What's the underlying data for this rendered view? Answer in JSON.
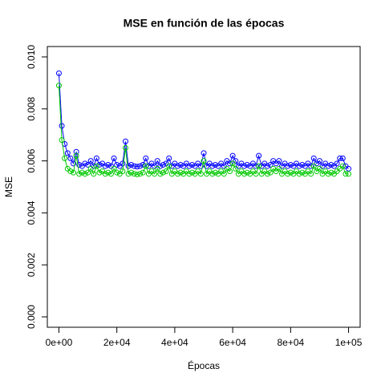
{
  "chart_data": {
    "type": "line",
    "title": "MSE en función de las épocas",
    "x_label": "Épocas",
    "y_label": "MSE",
    "x": [
      0,
      1000,
      2000,
      3000,
      4000,
      5000,
      6000,
      7000,
      8000,
      9000,
      10000,
      11000,
      12000,
      13000,
      14000,
      15000,
      16000,
      17000,
      18000,
      19000,
      20000,
      21000,
      22000,
      23000,
      24000,
      25000,
      26000,
      27000,
      28000,
      29000,
      30000,
      31000,
      32000,
      33000,
      34000,
      35000,
      36000,
      37000,
      38000,
      39000,
      40000,
      41000,
      42000,
      43000,
      44000,
      45000,
      46000,
      47000,
      48000,
      49000,
      50000,
      51000,
      52000,
      53000,
      54000,
      55000,
      56000,
      57000,
      58000,
      59000,
      60000,
      61000,
      62000,
      63000,
      64000,
      65000,
      66000,
      67000,
      68000,
      69000,
      70000,
      71000,
      72000,
      73000,
      74000,
      75000,
      76000,
      77000,
      78000,
      79000,
      80000,
      81000,
      82000,
      83000,
      84000,
      85000,
      86000,
      87000,
      88000,
      89000,
      90000,
      91000,
      92000,
      93000,
      94000,
      95000,
      96000,
      97000,
      98000,
      99000,
      100000
    ],
    "series": [
      {
        "color": "#0000ff",
        "values": [
          0.00937,
          0.00735,
          0.00665,
          0.0063,
          0.0061,
          0.0059,
          0.00635,
          0.00585,
          0.0058,
          0.0059,
          0.00585,
          0.006,
          0.0058,
          0.0061,
          0.00585,
          0.0059,
          0.0058,
          0.00585,
          0.0058,
          0.0061,
          0.00585,
          0.0058,
          0.0059,
          0.00675,
          0.0058,
          0.00585,
          0.0058,
          0.00578,
          0.0058,
          0.00585,
          0.0061,
          0.0058,
          0.0059,
          0.0058,
          0.006,
          0.0058,
          0.00585,
          0.0059,
          0.0061,
          0.0058,
          0.0059,
          0.0058,
          0.00585,
          0.0058,
          0.0059,
          0.0058,
          0.00585,
          0.0058,
          0.0059,
          0.0058,
          0.0063,
          0.0058,
          0.0059,
          0.0058,
          0.00585,
          0.0058,
          0.0059,
          0.0058,
          0.006,
          0.0059,
          0.0062,
          0.006,
          0.0058,
          0.0059,
          0.0058,
          0.00585,
          0.0058,
          0.0059,
          0.0058,
          0.0062,
          0.0058,
          0.0059,
          0.0058,
          0.00585,
          0.006,
          0.0059,
          0.006,
          0.0058,
          0.0059,
          0.0058,
          0.00585,
          0.0058,
          0.0059,
          0.0058,
          0.00585,
          0.0058,
          0.0059,
          0.0058,
          0.0061,
          0.0059,
          0.006,
          0.0058,
          0.0059,
          0.0058,
          0.00585,
          0.0058,
          0.0059,
          0.0061,
          0.0061,
          0.0058,
          0.0057
        ]
      },
      {
        "color": "#00c800",
        "values": [
          0.0089,
          0.0068,
          0.0061,
          0.0057,
          0.0056,
          0.00555,
          0.0062,
          0.0055,
          0.00555,
          0.0055,
          0.00555,
          0.0057,
          0.0055,
          0.0058,
          0.00555,
          0.0056,
          0.0055,
          0.00555,
          0.0055,
          0.0057,
          0.00555,
          0.0055,
          0.0056,
          0.0065,
          0.0055,
          0.00555,
          0.0055,
          0.00548,
          0.0055,
          0.00555,
          0.0058,
          0.0055,
          0.0056,
          0.0055,
          0.0057,
          0.0055,
          0.00555,
          0.0056,
          0.0058,
          0.0055,
          0.0056,
          0.0055,
          0.00555,
          0.0055,
          0.0056,
          0.0055,
          0.00555,
          0.0055,
          0.0056,
          0.0055,
          0.006,
          0.0055,
          0.0056,
          0.0055,
          0.00555,
          0.0055,
          0.0056,
          0.0055,
          0.0057,
          0.0056,
          0.0059,
          0.0057,
          0.0055,
          0.0056,
          0.0055,
          0.00555,
          0.0055,
          0.0056,
          0.0055,
          0.0058,
          0.0055,
          0.0056,
          0.0055,
          0.00555,
          0.0057,
          0.0056,
          0.0057,
          0.0055,
          0.0056,
          0.0055,
          0.00555,
          0.0055,
          0.0056,
          0.0055,
          0.00555,
          0.0055,
          0.0056,
          0.0055,
          0.0058,
          0.0056,
          0.0057,
          0.0055,
          0.0056,
          0.0055,
          0.00555,
          0.0055,
          0.0056,
          0.0057,
          0.0058,
          0.0055,
          0.0055
        ]
      }
    ],
    "xlim": [
      -4000,
      104000
    ],
    "xticks": [
      {
        "value": 0,
        "label": "0e+00"
      },
      {
        "value": 20000,
        "label": "2e+04"
      },
      {
        "value": 40000,
        "label": "4e+04"
      },
      {
        "value": 60000,
        "label": "6e+04"
      },
      {
        "value": 80000,
        "label": "8e+04"
      },
      {
        "value": 100000,
        "label": "1e+05"
      }
    ],
    "ylim": [
      -0.0004,
      0.0104
    ],
    "yticks": [
      {
        "value": 0,
        "label": "0.000"
      },
      0.002,
      0.004,
      0.006,
      0.008,
      {
        "value": 0.01,
        "label": "0.010"
      }
    ]
  }
}
